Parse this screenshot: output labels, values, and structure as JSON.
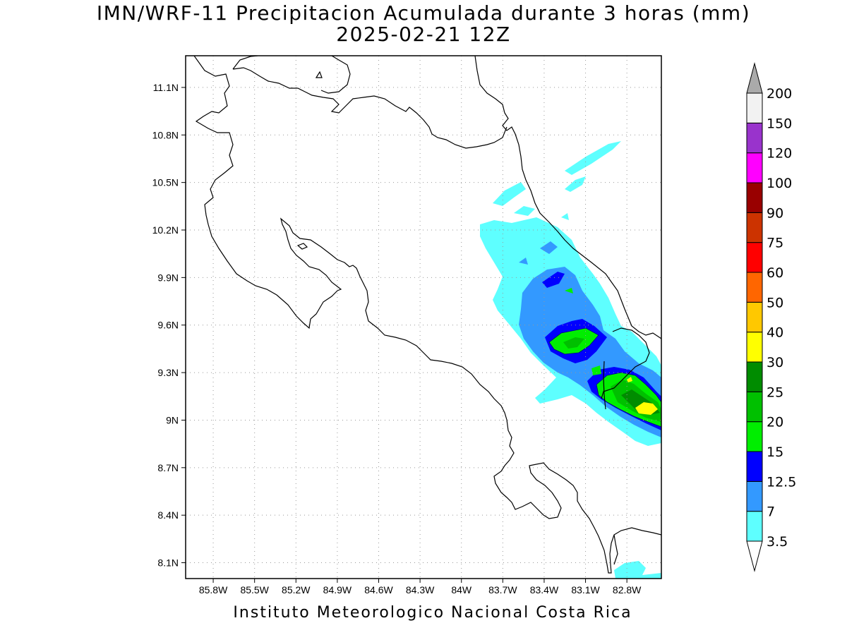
{
  "title_line1": "IMN/WRF-11 Precipitacion Acumulada durante 3 horas (mm)",
  "title_line2": "2025-02-21 12Z",
  "footer": "Instituto Meteorologico Nacional Costa Rica",
  "map": {
    "lon_range": [
      -86.0,
      -82.55
    ],
    "lat_range": [
      8.0,
      11.3
    ],
    "lat_ticks": [
      "11.1N",
      "10.8N",
      "10.5N",
      "10.2N",
      "9.9N",
      "9.6N",
      "9.3N",
      "9N",
      "8.7N",
      "8.4N",
      "8.1N"
    ],
    "lon_ticks": [
      "85.8W",
      "85.5W",
      "85.2W",
      "84.9W",
      "84.6W",
      "84.3W",
      "84W",
      "83.7W",
      "83.4W",
      "83.1W",
      "82.8W"
    ],
    "grid": "dotted"
  },
  "colorbar": {
    "levels": [
      "3.5",
      "7",
      "12.5",
      "15",
      "20",
      "25",
      "30",
      "40",
      "50",
      "60",
      "75",
      "90",
      "100",
      "120",
      "150",
      "200"
    ],
    "colors": [
      "#ffffff",
      "#5effff",
      "#3399ff",
      "#0000ff",
      "#00ee00",
      "#00c000",
      "#008c00",
      "#ffff00",
      "#ffc800",
      "#ff6600",
      "#ff0000",
      "#cc3300",
      "#990000",
      "#ff00ff",
      "#9933cc",
      "#f2f2f2",
      "#aaaaaa"
    ]
  }
}
